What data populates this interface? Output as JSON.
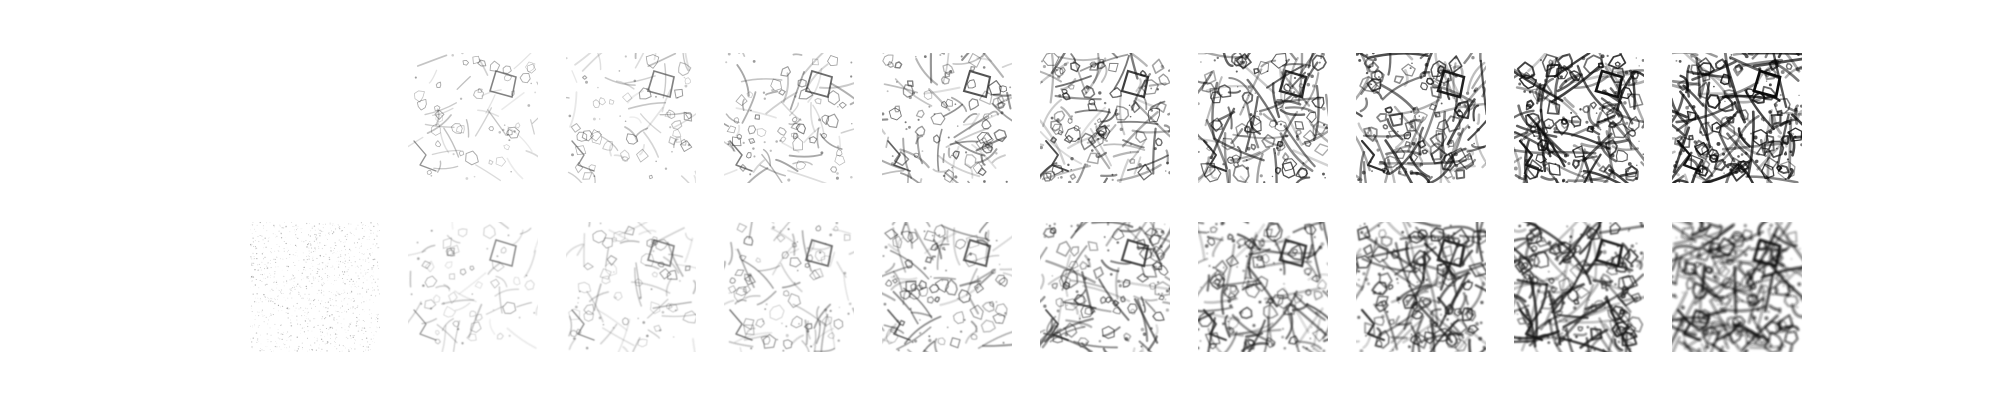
{
  "figure": {
    "rows": 2,
    "cols": 10,
    "tiles": [
      {
        "row": 0,
        "col": 0,
        "kind": "empty",
        "density": 0.0,
        "blur": 0.0,
        "stroke": "#222222"
      },
      {
        "row": 0,
        "col": 1,
        "kind": "pattern",
        "density": 0.22,
        "blur": 0.0,
        "stroke": "#3f3f3f"
      },
      {
        "row": 0,
        "col": 2,
        "kind": "pattern",
        "density": 0.3,
        "blur": 0.0,
        "stroke": "#4a4a4a"
      },
      {
        "row": 0,
        "col": 3,
        "kind": "pattern",
        "density": 0.38,
        "blur": 0.0,
        "stroke": "#333333"
      },
      {
        "row": 0,
        "col": 4,
        "kind": "pattern",
        "density": 0.5,
        "blur": 0.0,
        "stroke": "#222222"
      },
      {
        "row": 0,
        "col": 5,
        "kind": "pattern",
        "density": 0.62,
        "blur": 0.0,
        "stroke": "#181818"
      },
      {
        "row": 0,
        "col": 6,
        "kind": "pattern",
        "density": 0.72,
        "blur": 0.0,
        "stroke": "#111111"
      },
      {
        "row": 0,
        "col": 7,
        "kind": "pattern",
        "density": 0.82,
        "blur": 0.0,
        "stroke": "#0f0f0f"
      },
      {
        "row": 0,
        "col": 8,
        "kind": "pattern",
        "density": 0.9,
        "blur": 0.0,
        "stroke": "#0b0b0b"
      },
      {
        "row": 0,
        "col": 9,
        "kind": "pattern",
        "density": 0.96,
        "blur": 0.0,
        "stroke": "#080808"
      },
      {
        "row": 1,
        "col": 0,
        "kind": "noise",
        "density": 0.1,
        "blur": 0.0,
        "stroke": "#666666"
      },
      {
        "row": 1,
        "col": 1,
        "kind": "pattern",
        "density": 0.24,
        "blur": 0.25,
        "stroke": "#555555"
      },
      {
        "row": 1,
        "col": 2,
        "kind": "pattern",
        "density": 0.32,
        "blur": 0.28,
        "stroke": "#555555"
      },
      {
        "row": 1,
        "col": 3,
        "kind": "pattern",
        "density": 0.4,
        "blur": 0.3,
        "stroke": "#444444"
      },
      {
        "row": 1,
        "col": 4,
        "kind": "pattern",
        "density": 0.52,
        "blur": 0.35,
        "stroke": "#333333"
      },
      {
        "row": 1,
        "col": 5,
        "kind": "pattern",
        "density": 0.64,
        "blur": 0.4,
        "stroke": "#2a2a2a"
      },
      {
        "row": 1,
        "col": 6,
        "kind": "pattern",
        "density": 0.74,
        "blur": 0.45,
        "stroke": "#202020"
      },
      {
        "row": 1,
        "col": 7,
        "kind": "pattern",
        "density": 0.84,
        "blur": 0.5,
        "stroke": "#1b1b1b"
      },
      {
        "row": 1,
        "col": 8,
        "kind": "pattern",
        "density": 0.92,
        "blur": 0.55,
        "stroke": "#161616"
      },
      {
        "row": 1,
        "col": 9,
        "kind": "pattern",
        "density": 0.97,
        "blur": 0.6,
        "stroke": "#111111"
      }
    ]
  }
}
